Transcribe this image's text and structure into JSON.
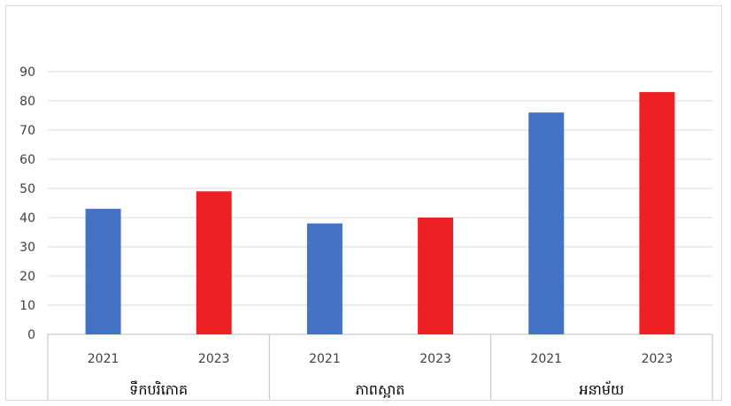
{
  "chart_data": {
    "type": "bar",
    "title": "",
    "xlabel": "",
    "ylabel": "",
    "ylim": [
      0,
      90
    ],
    "yticks": [
      0,
      10,
      20,
      30,
      40,
      50,
      60,
      70,
      80,
      90
    ],
    "grid": true,
    "legend": "none",
    "groups": [
      {
        "label": "ទឹកបរិភោគ",
        "bars": [
          {
            "year": "2021",
            "value": 43
          },
          {
            "year": "2023",
            "value": 49
          }
        ]
      },
      {
        "label": "ភាពស្អាត",
        "bars": [
          {
            "year": "2021",
            "value": 38
          },
          {
            "year": "2023",
            "value": 40
          }
        ]
      },
      {
        "label": "អនាម័យ",
        "bars": [
          {
            "year": "2021",
            "value": 76
          },
          {
            "year": "2023",
            "value": 83
          }
        ]
      }
    ],
    "colors": {
      "2021": "#4472c4",
      "2023": "#ee2024"
    }
  }
}
